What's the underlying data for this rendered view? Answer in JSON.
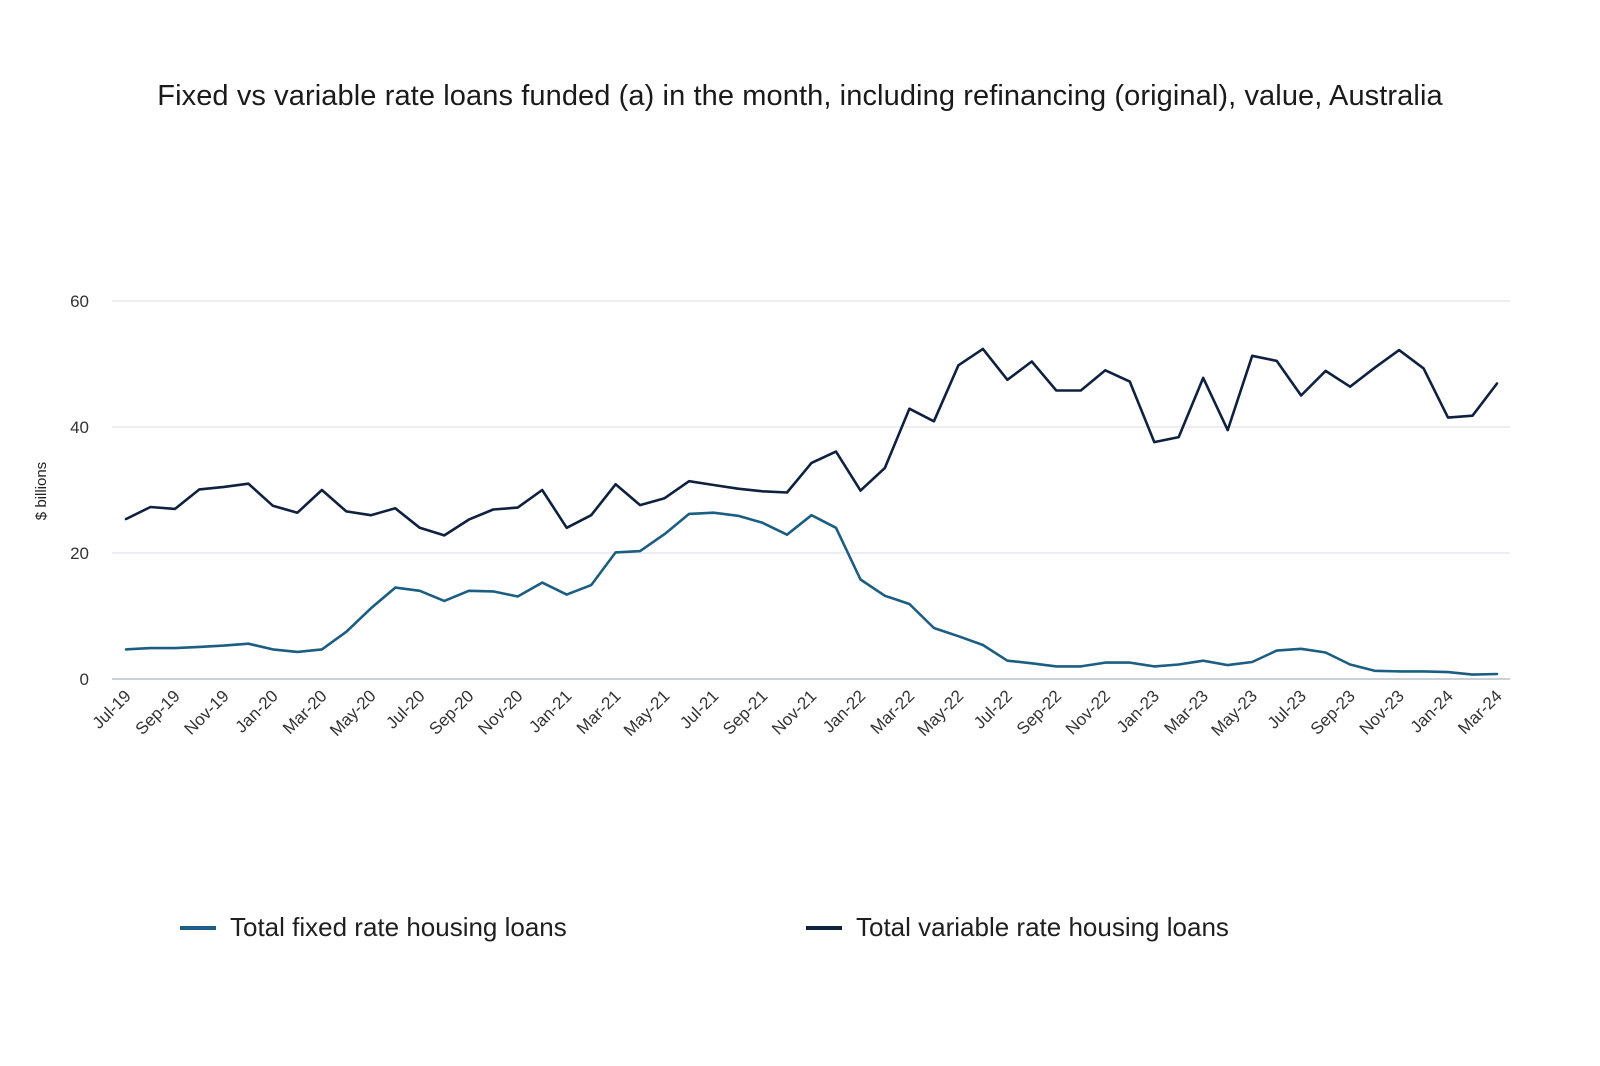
{
  "chart_data": {
    "type": "line",
    "title": "Fixed vs variable rate loans funded (a) in the month, including refinancing (original), value, Australia",
    "ylabel": "$ billions",
    "xlabel": "",
    "ylim": [
      0,
      60
    ],
    "yticks": [
      0,
      20,
      40,
      60
    ],
    "grid": true,
    "legend": "bottom",
    "x": [
      "Jul-19",
      "Aug-19",
      "Sep-19",
      "Oct-19",
      "Nov-19",
      "Dec-19",
      "Jan-20",
      "Feb-20",
      "Mar-20",
      "Apr-20",
      "May-20",
      "Jun-20",
      "Jul-20",
      "Aug-20",
      "Sep-20",
      "Oct-20",
      "Nov-20",
      "Dec-20",
      "Jan-21",
      "Feb-21",
      "Mar-21",
      "Apr-21",
      "May-21",
      "Jun-21",
      "Jul-21",
      "Aug-21",
      "Sep-21",
      "Oct-21",
      "Nov-21",
      "Dec-21",
      "Jan-22",
      "Feb-22",
      "Mar-22",
      "Apr-22",
      "May-22",
      "Jun-22",
      "Jul-22",
      "Aug-22",
      "Sep-22",
      "Oct-22",
      "Nov-22",
      "Dec-22",
      "Jan-23",
      "Feb-23",
      "Mar-23",
      "Apr-23",
      "May-23",
      "Jun-23",
      "Jul-23",
      "Aug-23",
      "Sep-23",
      "Oct-23",
      "Nov-23",
      "Dec-23",
      "Jan-24",
      "Feb-24",
      "Mar-24"
    ],
    "xtick_labels": [
      "Jul-19",
      "Sep-19",
      "Nov-19",
      "Jan-20",
      "Mar-20",
      "May-20",
      "Jul-20",
      "Sep-20",
      "Nov-20",
      "Jan-21",
      "Mar-21",
      "May-21",
      "Jul-21",
      "Sep-21",
      "Nov-21",
      "Jan-22",
      "Mar-22",
      "May-22",
      "Jul-22",
      "Sep-22",
      "Nov-22",
      "Jan-23",
      "Mar-23",
      "May-23",
      "Jul-23",
      "Sep-23",
      "Nov-23",
      "Jan-24",
      "Mar-24"
    ],
    "series": [
      {
        "name": "Total fixed rate housing loans",
        "color": "#1b5e82",
        "values": [
          4.7,
          4.9,
          4.9,
          5.1,
          5.3,
          5.6,
          4.7,
          4.3,
          4.7,
          7.5,
          11.2,
          14.5,
          14.0,
          12.4,
          14.0,
          13.9,
          13.1,
          15.3,
          13.4,
          14.9,
          20.1,
          20.3,
          23.0,
          26.2,
          26.4,
          25.9,
          24.8,
          22.9,
          26.0,
          24.0,
          15.8,
          13.2,
          11.9,
          8.1,
          6.8,
          5.4,
          2.9,
          2.5,
          2.0,
          2.0,
          2.6,
          2.6,
          2.0,
          2.3,
          2.9,
          2.2,
          2.7,
          4.5,
          4.8,
          4.2,
          2.3,
          1.3,
          1.2,
          1.2,
          1.1,
          0.7,
          0.8
        ]
      },
      {
        "name": "Total variable rate housing loans",
        "color": "#0f213f",
        "values": [
          25.4,
          27.3,
          27.0,
          30.1,
          30.5,
          31.0,
          27.5,
          26.4,
          30.0,
          26.6,
          26.0,
          27.1,
          24.0,
          22.8,
          25.3,
          26.9,
          27.2,
          30.0,
          24.0,
          26.0,
          30.9,
          27.6,
          28.7,
          31.4,
          30.8,
          30.2,
          29.8,
          29.6,
          34.3,
          36.1,
          29.9,
          33.5,
          42.9,
          40.9,
          49.8,
          52.4,
          47.5,
          50.4,
          45.8,
          45.8,
          49.0,
          47.2,
          37.6,
          38.4,
          47.8,
          39.5,
          51.3,
          50.5,
          45.0,
          48.9,
          46.4,
          49.4,
          52.2,
          49.3,
          41.5,
          41.8,
          46.9
        ]
      }
    ]
  }
}
